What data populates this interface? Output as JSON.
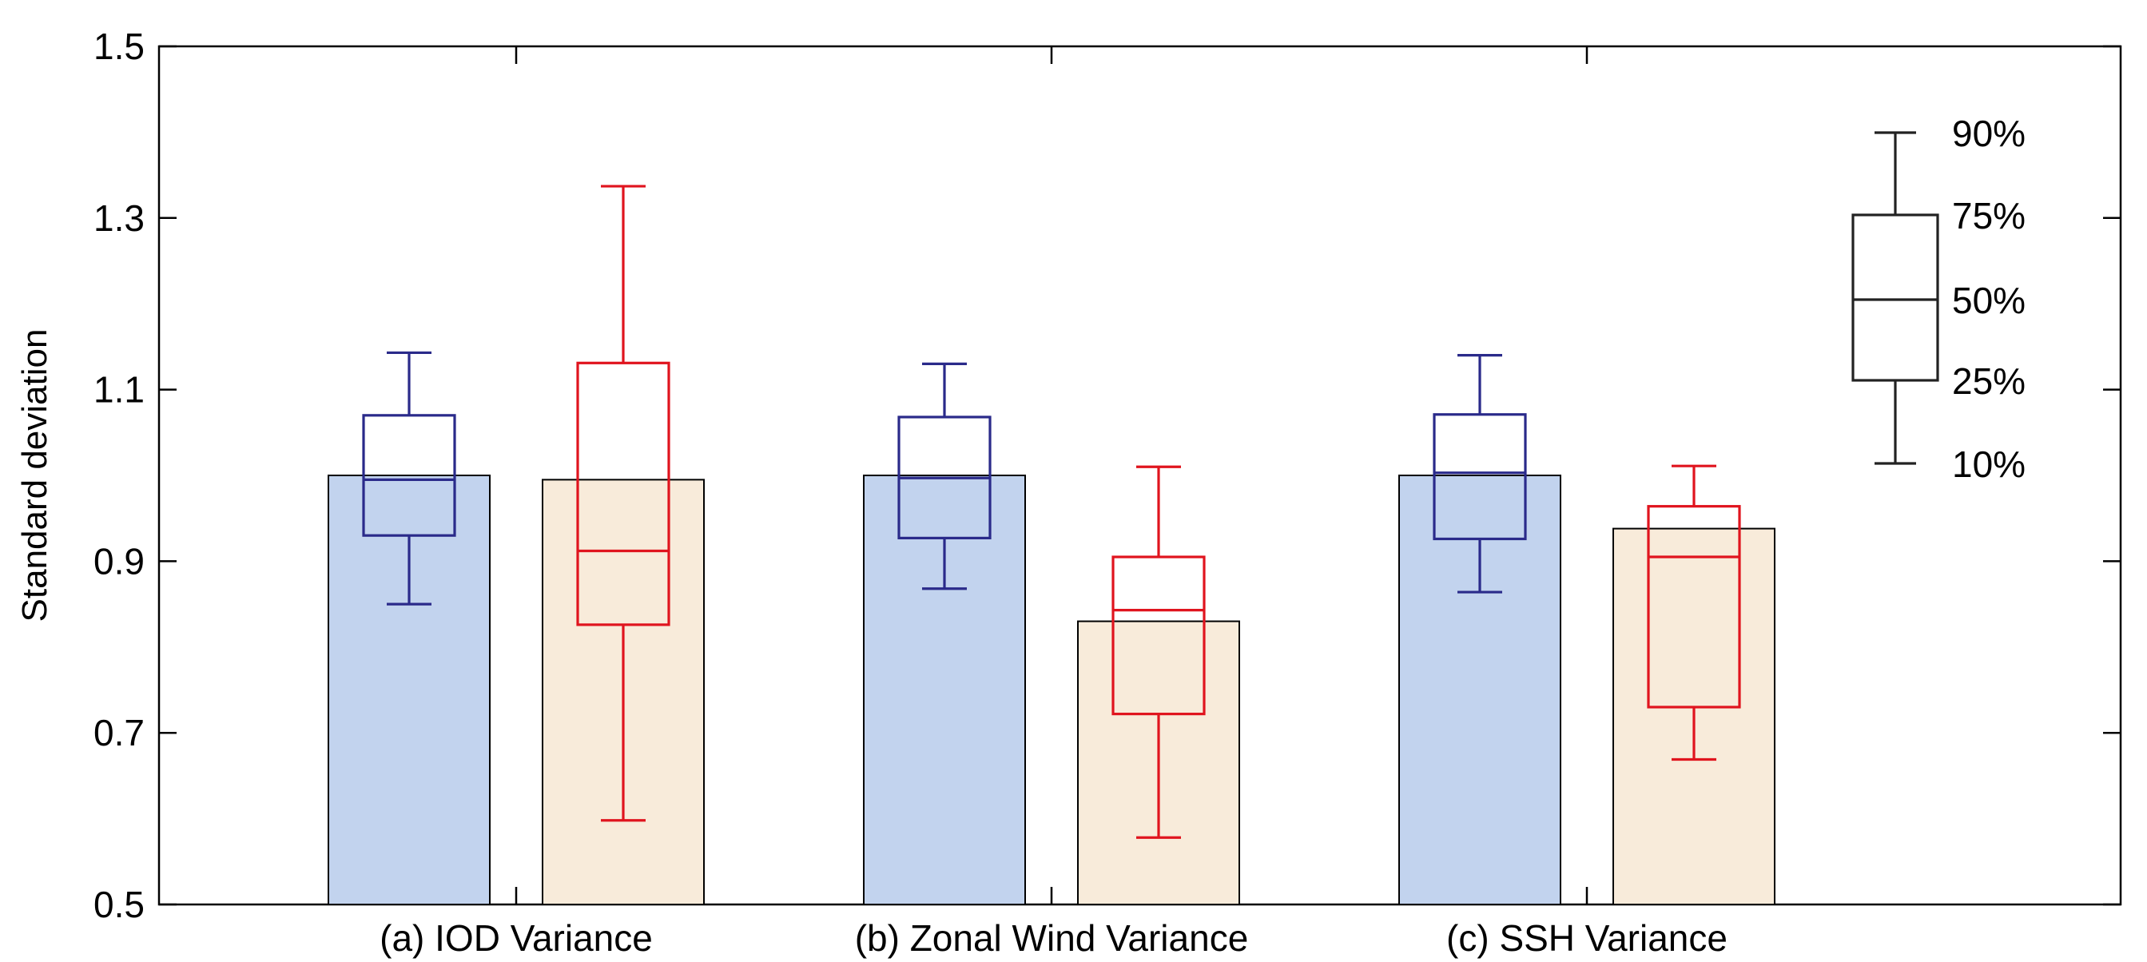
{
  "chart_data": {
    "type": "bar",
    "title": "",
    "xlabel": "",
    "ylabel": "Standard deviation",
    "ylim": [
      0.5,
      1.5
    ],
    "yticks": [
      "0.5",
      "0.7",
      "0.9",
      "1.1",
      "1.3",
      "1.5"
    ],
    "ytick_values": [
      0.5,
      0.7,
      0.9,
      1.1,
      1.3,
      1.5
    ],
    "grid": false,
    "categories": [
      "(a) IOD Variance",
      "(b) Zonal Wind Variance",
      "(c) SSH Variance"
    ],
    "series": [
      {
        "color": "#c2d3ee",
        "box_color": "#2a2a8a",
        "values": [
          1.0,
          1.0,
          1.0
        ],
        "boxes": [
          {
            "p10": 0.85,
            "p25": 0.93,
            "p50": 0.995,
            "p75": 1.07,
            "p90": 1.143
          },
          {
            "p10": 0.868,
            "p25": 0.927,
            "p50": 0.997,
            "p75": 1.068,
            "p90": 1.13
          },
          {
            "p10": 0.864,
            "p25": 0.926,
            "p50": 1.003,
            "p75": 1.071,
            "p90": 1.14
          }
        ]
      },
      {
        "color": "#f8ebda",
        "box_color": "#e0141e",
        "values": [
          0.995,
          0.83,
          0.938
        ],
        "boxes": [
          {
            "p10": 0.598,
            "p25": 0.826,
            "p50": 0.912,
            "p75": 1.131,
            "p90": 1.337
          },
          {
            "p10": 0.578,
            "p25": 0.722,
            "p50": 0.843,
            "p75": 0.905,
            "p90": 1.01
          },
          {
            "p10": 0.669,
            "p25": 0.73,
            "p50": 0.905,
            "p75": 0.964,
            "p90": 1.011
          }
        ]
      }
    ],
    "legend": {
      "placement": "top-right",
      "entries": [
        "90%",
        "75%",
        "50%",
        "25%",
        "10%"
      ]
    }
  }
}
